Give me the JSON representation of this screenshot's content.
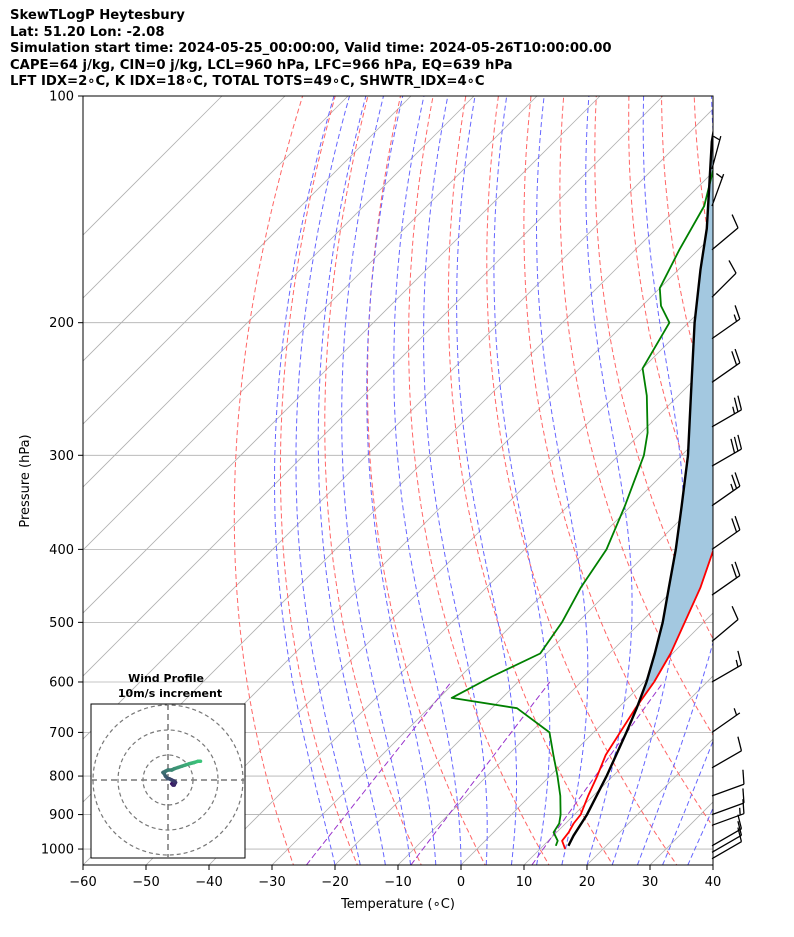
{
  "header": {
    "line1": "SkewTLogP Heytesbury",
    "line2": "Lat: 51.20   Lon: -2.08",
    "line3": "Simulation start time: 2024-05-25_00:00:00, Valid time: 2024-05-26T10:00:00.00",
    "line4": "CAPE=64 j/kg, CIN=0 j/kg, LCL=960 hPa, LFC=966 hPa, EQ=639 hPa",
    "line5": "LFT IDX=2∘C, K IDX=18∘C, TOTAL TOTS=49∘C, SHWTR_IDX=4∘C"
  },
  "colors": {
    "temperature": "#ff0000",
    "dewpoint": "#008000",
    "parcel": "#000000",
    "cape_fill": "#a3c8e0",
    "dry_adiabat": "#ff6666",
    "moist_adiabat": "#6666ff",
    "mixing_ratio": "#9933cc",
    "isotherm": "#b0b0b0",
    "hodo_light": "#3cc47a",
    "hodo_dark": "#3a1566"
  },
  "chart_data": {
    "type": "line",
    "xlabel": "Temperature (∘C)",
    "ylabel": "Pressure (hPa)",
    "x_ticks": [
      "−60",
      "−50",
      "−40",
      "−30",
      "−20",
      "−10",
      "0",
      "10",
      "20",
      "30",
      "40"
    ],
    "x_tick_values": [
      -60,
      -50,
      -40,
      -30,
      -20,
      -10,
      0,
      10,
      20,
      30,
      40
    ],
    "y_ticks": [
      "100",
      "200",
      "300",
      "400",
      "500",
      "600",
      "700",
      "800",
      "900",
      "1000"
    ],
    "y_tick_values": [
      100,
      200,
      300,
      400,
      500,
      600,
      700,
      800,
      900,
      1000
    ],
    "xlim": [
      -60,
      40
    ],
    "ylim": [
      1050,
      100
    ],
    "y_scale": "log",
    "skew": true,
    "series": [
      {
        "name": "temperature",
        "points": [
          [
            1000,
            14
          ],
          [
            975,
            12.2
          ],
          [
            950,
            11.9
          ],
          [
            925,
            11.3
          ],
          [
            900,
            11
          ],
          [
            850,
            9.2
          ],
          [
            800,
            7.5
          ],
          [
            750,
            5.5
          ],
          [
            700,
            4.2
          ],
          [
            650,
            2.8
          ],
          [
            600,
            1.6
          ],
          [
            550,
            -0.3
          ],
          [
            500,
            -3
          ],
          [
            450,
            -6
          ],
          [
            400,
            -10
          ],
          [
            350,
            -15
          ],
          [
            300,
            -21
          ],
          [
            280,
            -24.5
          ],
          [
            260,
            -28
          ],
          [
            240,
            -31
          ],
          [
            220,
            -35
          ],
          [
            200,
            -39
          ],
          [
            180,
            -44
          ],
          [
            160,
            -50
          ],
          [
            150,
            -53
          ],
          [
            140,
            -57
          ],
          [
            130,
            -62
          ],
          [
            120,
            -66
          ],
          [
            110,
            -71
          ],
          [
            100,
            -76
          ]
        ]
      },
      {
        "name": "dewpoint",
        "points": [
          [
            990,
            12
          ],
          [
            975,
            11.5
          ],
          [
            950,
            9.5
          ],
          [
            925,
            9
          ],
          [
            900,
            7.8
          ],
          [
            850,
            4.8
          ],
          [
            800,
            1.2
          ],
          [
            750,
            -2.8
          ],
          [
            700,
            -7
          ],
          [
            650,
            -16
          ],
          [
            630,
            -28
          ],
          [
            590,
            -25
          ],
          [
            550,
            -21
          ],
          [
            500,
            -22.5
          ],
          [
            450,
            -25
          ],
          [
            400,
            -27
          ],
          [
            350,
            -31
          ],
          [
            300,
            -36
          ],
          [
            280,
            -39
          ],
          [
            250,
            -45
          ],
          [
            230,
            -50
          ],
          [
            200,
            -53
          ],
          [
            190,
            -57
          ],
          [
            180,
            -60
          ],
          [
            160,
            -63
          ],
          [
            140,
            -66
          ],
          [
            120,
            -72
          ],
          [
            100,
            -78
          ]
        ]
      },
      {
        "name": "parcel",
        "points": [
          [
            990,
            14
          ],
          [
            960,
            13.2
          ],
          [
            900,
            12
          ],
          [
            800,
            9
          ],
          [
            700,
            5.2
          ],
          [
            650,
            3
          ],
          [
            600,
            0.4
          ],
          [
            550,
            -2.8
          ],
          [
            500,
            -6.5
          ],
          [
            450,
            -11
          ],
          [
            400,
            -16
          ],
          [
            350,
            -22
          ],
          [
            300,
            -29
          ],
          [
            250,
            -38
          ],
          [
            200,
            -49
          ],
          [
            170,
            -56.5
          ],
          [
            150,
            -62
          ],
          [
            130,
            -69
          ],
          [
            115,
            -75
          ],
          [
            100,
            -81
          ]
        ]
      }
    ],
    "cape_region": {
      "bottom_hPa": 639,
      "top_hPa": 100
    },
    "wind_barbs": [
      {
        "p": 1030,
        "speed": 10,
        "dir": 240
      },
      {
        "p": 1010,
        "speed": 10,
        "dir": 240
      },
      {
        "p": 990,
        "speed": 10,
        "dir": 240
      },
      {
        "p": 930,
        "speed": 15,
        "dir": 250
      },
      {
        "p": 900,
        "speed": 10,
        "dir": 250
      },
      {
        "p": 850,
        "speed": 10,
        "dir": 250
      },
      {
        "p": 780,
        "speed": 10,
        "dir": 240
      },
      {
        "p": 700,
        "speed": 5,
        "dir": 235
      },
      {
        "p": 600,
        "speed": 15,
        "dir": 240
      },
      {
        "p": 530,
        "speed": 10,
        "dir": 230
      },
      {
        "p": 460,
        "speed": 20,
        "dir": 235
      },
      {
        "p": 400,
        "speed": 20,
        "dir": 235
      },
      {
        "p": 350,
        "speed": 25,
        "dir": 235
      },
      {
        "p": 310,
        "speed": 30,
        "dir": 240
      },
      {
        "p": 275,
        "speed": 25,
        "dir": 240
      },
      {
        "p": 240,
        "speed": 20,
        "dir": 235
      },
      {
        "p": 210,
        "speed": 15,
        "dir": 235
      },
      {
        "p": 185,
        "speed": 10,
        "dir": 225
      },
      {
        "p": 160,
        "speed": 10,
        "dir": 230
      },
      {
        "p": 140,
        "speed": 5,
        "dir": 200
      },
      {
        "p": 125,
        "speed": 5,
        "dir": 195
      }
    ],
    "hodograph": {
      "title_line1": "Wind Profile",
      "title_line2": "10m/s increment",
      "rings_ms": [
        10,
        20,
        30
      ],
      "range_ms": 30,
      "u": [
        3,
        4,
        5,
        6,
        5,
        3,
        1,
        0,
        -2,
        -3,
        -4,
        -2,
        0,
        3,
        5,
        8,
        11,
        14,
        17,
        21,
        24,
        26
      ],
      "v": [
        -3,
        -4,
        -4,
        -2,
        -1,
        0,
        1,
        1,
        3,
        5,
        6,
        7,
        8,
        8,
        9,
        10,
        11,
        12,
        13,
        14,
        15,
        15
      ]
    }
  }
}
